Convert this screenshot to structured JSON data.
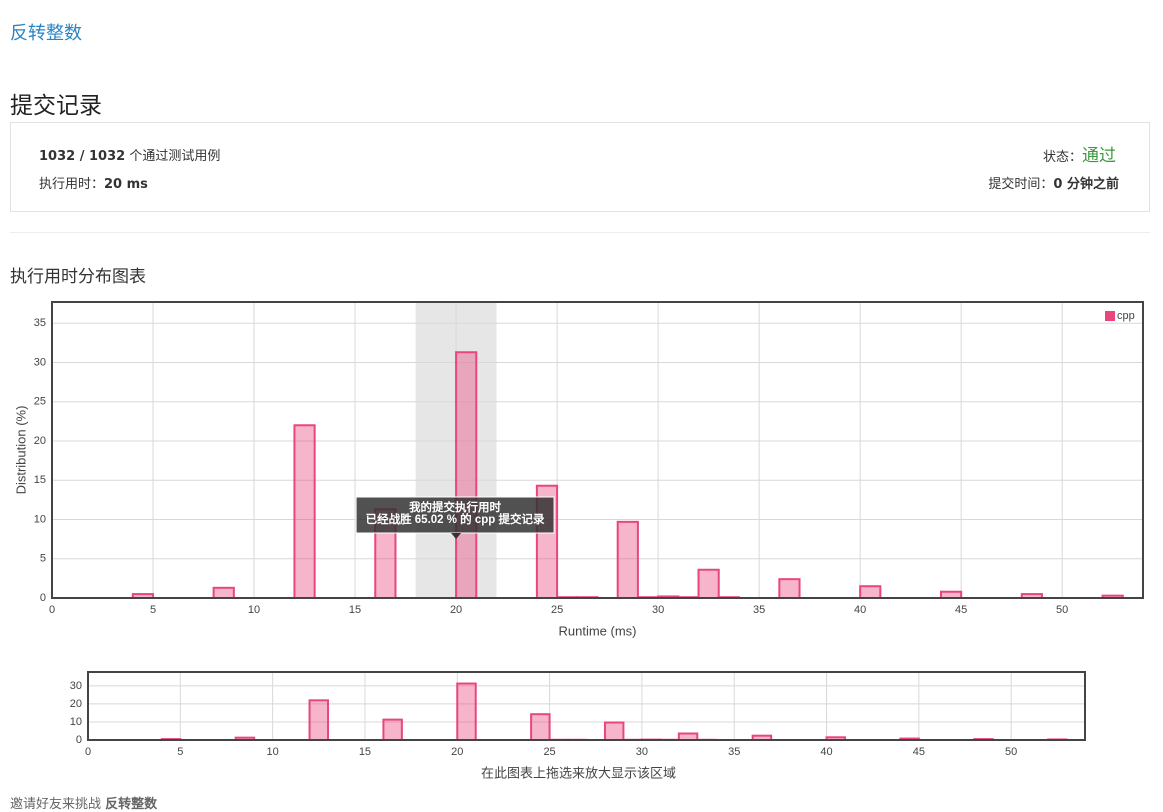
{
  "problem_link": "反转整数",
  "page_title": "提交记录",
  "submission": {
    "cases": "1032 / 1032",
    "cases_label": "个通过测试用例",
    "runtime_label": "执行用时：",
    "runtime": "20 ms",
    "status_label": "状态：",
    "status": "通过",
    "time_label": "提交时间：",
    "time": "0 分钟之前"
  },
  "chart_section_title": "执行用时分布图表",
  "chart_data": [
    {
      "type": "bar",
      "x_label": "Runtime (ms)",
      "y_label": "Distribution (%)",
      "x": [
        4,
        8,
        12,
        16,
        20,
        24,
        25,
        26,
        28,
        29,
        30,
        31,
        32,
        33,
        36,
        40,
        44,
        48,
        52
      ],
      "series": [
        {
          "name": "cpp",
          "color": "#e8467c",
          "values": [
            0.5,
            1.3,
            22.0,
            11.3,
            31.3,
            14.3,
            0.1,
            0.1,
            9.7,
            0.1,
            0.2,
            0.1,
            3.6,
            0.1,
            2.4,
            1.5,
            0.8,
            0.5,
            0.3
          ]
        }
      ],
      "xlim": [
        0,
        54
      ],
      "ylim": [
        0,
        37.7
      ],
      "xticks": [
        0,
        5,
        10,
        15,
        20,
        25,
        30,
        35,
        40,
        45,
        50
      ],
      "yticks": [
        0,
        5,
        10,
        15,
        20,
        25,
        30,
        35
      ],
      "grid": true,
      "legend": "top-right",
      "highlight": [
        18,
        22
      ],
      "tooltip": [
        "我的提交执行用时",
        "已经战胜 65.02 % 的 cpp 提交记录"
      ]
    },
    {
      "type": "bar",
      "caption": "在此图表上拖选来放大显示该区域",
      "x": [
        4,
        8,
        12,
        16,
        20,
        24,
        25,
        26,
        28,
        29,
        30,
        31,
        32,
        33,
        36,
        40,
        44,
        48,
        52
      ],
      "series": [
        {
          "color": "#e8467c",
          "values": [
            0.5,
            1.3,
            22.0,
            11.3,
            31.3,
            14.3,
            0.1,
            0.1,
            9.7,
            0.1,
            0.2,
            0.1,
            3.6,
            0.1,
            2.4,
            1.5,
            0.8,
            0.5,
            0.3
          ]
        }
      ],
      "xlim": [
        0,
        54
      ],
      "ylim": [
        0,
        37.7
      ],
      "xticks": [
        0,
        5,
        10,
        15,
        20,
        25,
        30,
        35,
        40,
        45,
        50
      ],
      "yticks": [
        0,
        10,
        20,
        30
      ],
      "grid": true
    }
  ],
  "footer": {
    "text": "邀请好友来挑战",
    "link": "反转整数"
  }
}
